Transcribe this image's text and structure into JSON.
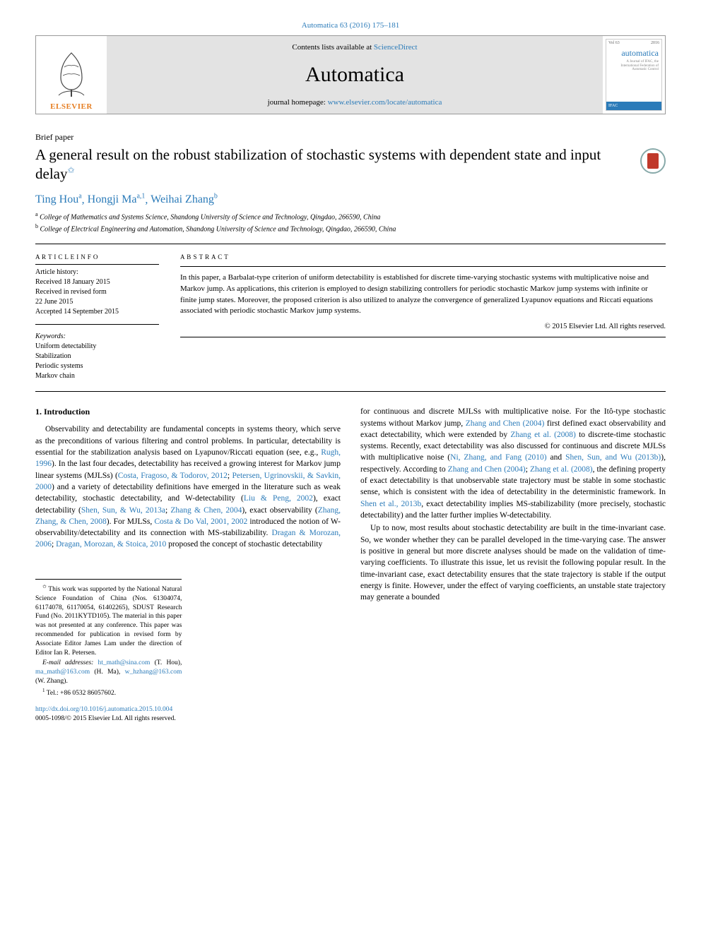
{
  "citation_top": "Automatica 63 (2016) 175–181",
  "header": {
    "contents_prefix": "Contents lists available at ",
    "contents_link": "ScienceDirect",
    "journal": "Automatica",
    "homepage_prefix": "journal homepage: ",
    "homepage_link": "www.elsevier.com/locate/automatica",
    "elsevier": "ELSEVIER",
    "cover_title": "automatica",
    "cover_sub": "A Journal of IFAC, the International Federation of Automatic Control",
    "cover_badge": "IFAC"
  },
  "paper": {
    "section": "Brief paper",
    "title_pre": "A general result on the robust stabilization of stochastic systems with dependent state and input delay",
    "star": "✩",
    "authors_html": [
      {
        "name": "Ting Hou",
        "sup": "a"
      },
      {
        "name": "Hongji Ma",
        "sup": "a,1"
      },
      {
        "name": "Weihai Zhang",
        "sup": "b"
      }
    ],
    "affiliations": [
      {
        "sup": "a",
        "text": "College of Mathematics and Systems Science, Shandong University of Science and Technology, Qingdao, 266590, China"
      },
      {
        "sup": "b",
        "text": "College of Electrical Engineering and Automation, Shandong University of Science and Technology, Qingdao, 266590, China"
      }
    ]
  },
  "meta": {
    "article_info": "A R T I C L E   I N F O",
    "history_label": "Article history:",
    "history": [
      "Received 18 January 2015",
      "Received in revised form",
      "22 June 2015",
      "Accepted 14 September 2015"
    ],
    "keywords_label": "Keywords:",
    "keywords": [
      "Uniform detectability",
      "Stabilization",
      "Periodic systems",
      "Markov chain"
    ]
  },
  "abstract": {
    "heading": "A B S T R A C T",
    "text": "In this paper, a Barbalat-type criterion of uniform detectability is established for discrete time-varying stochastic systems with multiplicative noise and Markov jump. As applications, this criterion is employed to design stabilizing controllers for periodic stochastic Markov jump systems with infinite or finite jump states. Moreover, the proposed criterion is also utilized to analyze the convergence of generalized Lyapunov equations and Riccati equations associated with periodic stochastic Markov jump systems.",
    "copyright": "© 2015 Elsevier Ltd. All rights reserved."
  },
  "body": {
    "sec1": "1. Introduction",
    "col1": [
      {
        "text": "Observability and detectability are fundamental concepts in systems theory, which serve as the preconditions of various filtering and control problems. In particular, detectability is essential for the stabilization analysis based on Lyapunov/Riccati equation (see, e.g., "
      },
      {
        "link": "Rugh, 1996"
      },
      {
        "text": "). In the last four decades, detectability has received a growing interest for Markov jump linear systems (MJLSs) ("
      },
      {
        "link": "Costa, Fragoso, & Todorov, 2012"
      },
      {
        "text": "; "
      },
      {
        "link": "Petersen, Ugrinovskii, & Savkin, 2000"
      },
      {
        "text": ") and a variety of detectability definitions have emerged in the literature such as weak detectability, stochastic detectability, and W-detectability ("
      },
      {
        "link": "Liu & Peng, 2002"
      },
      {
        "text": "), exact detectability ("
      },
      {
        "link": "Shen, Sun, & Wu, 2013a"
      },
      {
        "text": "; "
      },
      {
        "link": "Zhang & Chen, 2004"
      },
      {
        "text": "), exact observability ("
      },
      {
        "link": "Zhang, Zhang, & Chen, 2008"
      },
      {
        "text": "). For MJLSs, "
      },
      {
        "link": "Costa & Do Val, 2001, 2002"
      },
      {
        "text": " introduced the notion of W-observability/detectability and its connection with MS-stabilizability. "
      },
      {
        "link": "Dragan & Morozan, 2006"
      },
      {
        "text": "; "
      },
      {
        "link": "Dragan, Morozan, & Stoica, 2010"
      },
      {
        "text": " proposed the concept of stochastic detectability"
      }
    ],
    "col2": [
      {
        "text": "for continuous and discrete MJLSs with multiplicative noise. For the Itô-type stochastic systems without Markov jump, "
      },
      {
        "link": "Zhang and Chen (2004)"
      },
      {
        "text": " first defined exact observability and exact detectability, which were extended by "
      },
      {
        "link": "Zhang et al. (2008)"
      },
      {
        "text": " to discrete-time stochastic systems. Recently, exact detectability was also discussed for continuous and discrete MJLSs with multiplicative noise ("
      },
      {
        "link": "Ni, Zhang, and Fang (2010)"
      },
      {
        "text": " and "
      },
      {
        "link": "Shen, Sun, and Wu (2013b)"
      },
      {
        "text": "), respectively. According to "
      },
      {
        "link": "Zhang and Chen (2004)"
      },
      {
        "text": "; "
      },
      {
        "link": "Zhang et al. (2008)"
      },
      {
        "text": ", the defining property of exact detectability is that unobservable state trajectory must be stable in some stochastic sense, which is consistent with the idea of detectability in the deterministic framework. In "
      },
      {
        "link": "Shen et al., 2013b"
      },
      {
        "text": ", exact detectability implies MS-stabilizability (more precisely, stochastic detectability) and the latter further implies W-detectability."
      },
      {
        "para": true,
        "text": "Up to now, most results about stochastic detectability are built in the time-invariant case. So, we wonder whether they can be parallel developed in the time-varying case. The answer is positive in general but more discrete analyses should be made on the validation of time-varying coefficients. To illustrate this issue, let us revisit the following popular result. In the time-invariant case, exact detectability ensures that the state trajectory is stable if the output energy is finite. However, under the effect of varying coefficients, an unstable state trajectory may generate a bounded"
      }
    ]
  },
  "footnotes": {
    "f1_sup": "✩",
    "f1": "This work was supported by the National Natural Science Foundation of China (Nos. 61304074, 61174078, 61170054, 61402265), SDUST Research Fund (No. 2011KYTD105). The material in this paper was not presented at any conference. This paper was recommended for publication in revised form by Associate Editor James Lam under the direction of Editor Ian R. Petersen.",
    "emails_label": "E-mail addresses:",
    "emails": [
      {
        "addr": "ht_math@sina.com",
        "who": "(T. Hou)"
      },
      {
        "addr": "ma_math@163.com",
        "who": "(H. Ma)"
      },
      {
        "addr": "w_hzhang@163.com",
        "who": "(W. Zhang)"
      }
    ],
    "f2_sup": "1",
    "f2": "Tel.: +86 0532 86057602.",
    "doi": "http://dx.doi.org/10.1016/j.automatica.2015.10.004",
    "issn": "0005-1098/© 2015 Elsevier Ltd. All rights reserved."
  },
  "colors": {
    "link": "#2b7bb9",
    "elsevier": "#e67e22",
    "header_bg": "#e3e3e3",
    "crossmark_ring": "#8bb0b0",
    "crossmark_fill": "#c0392b"
  }
}
